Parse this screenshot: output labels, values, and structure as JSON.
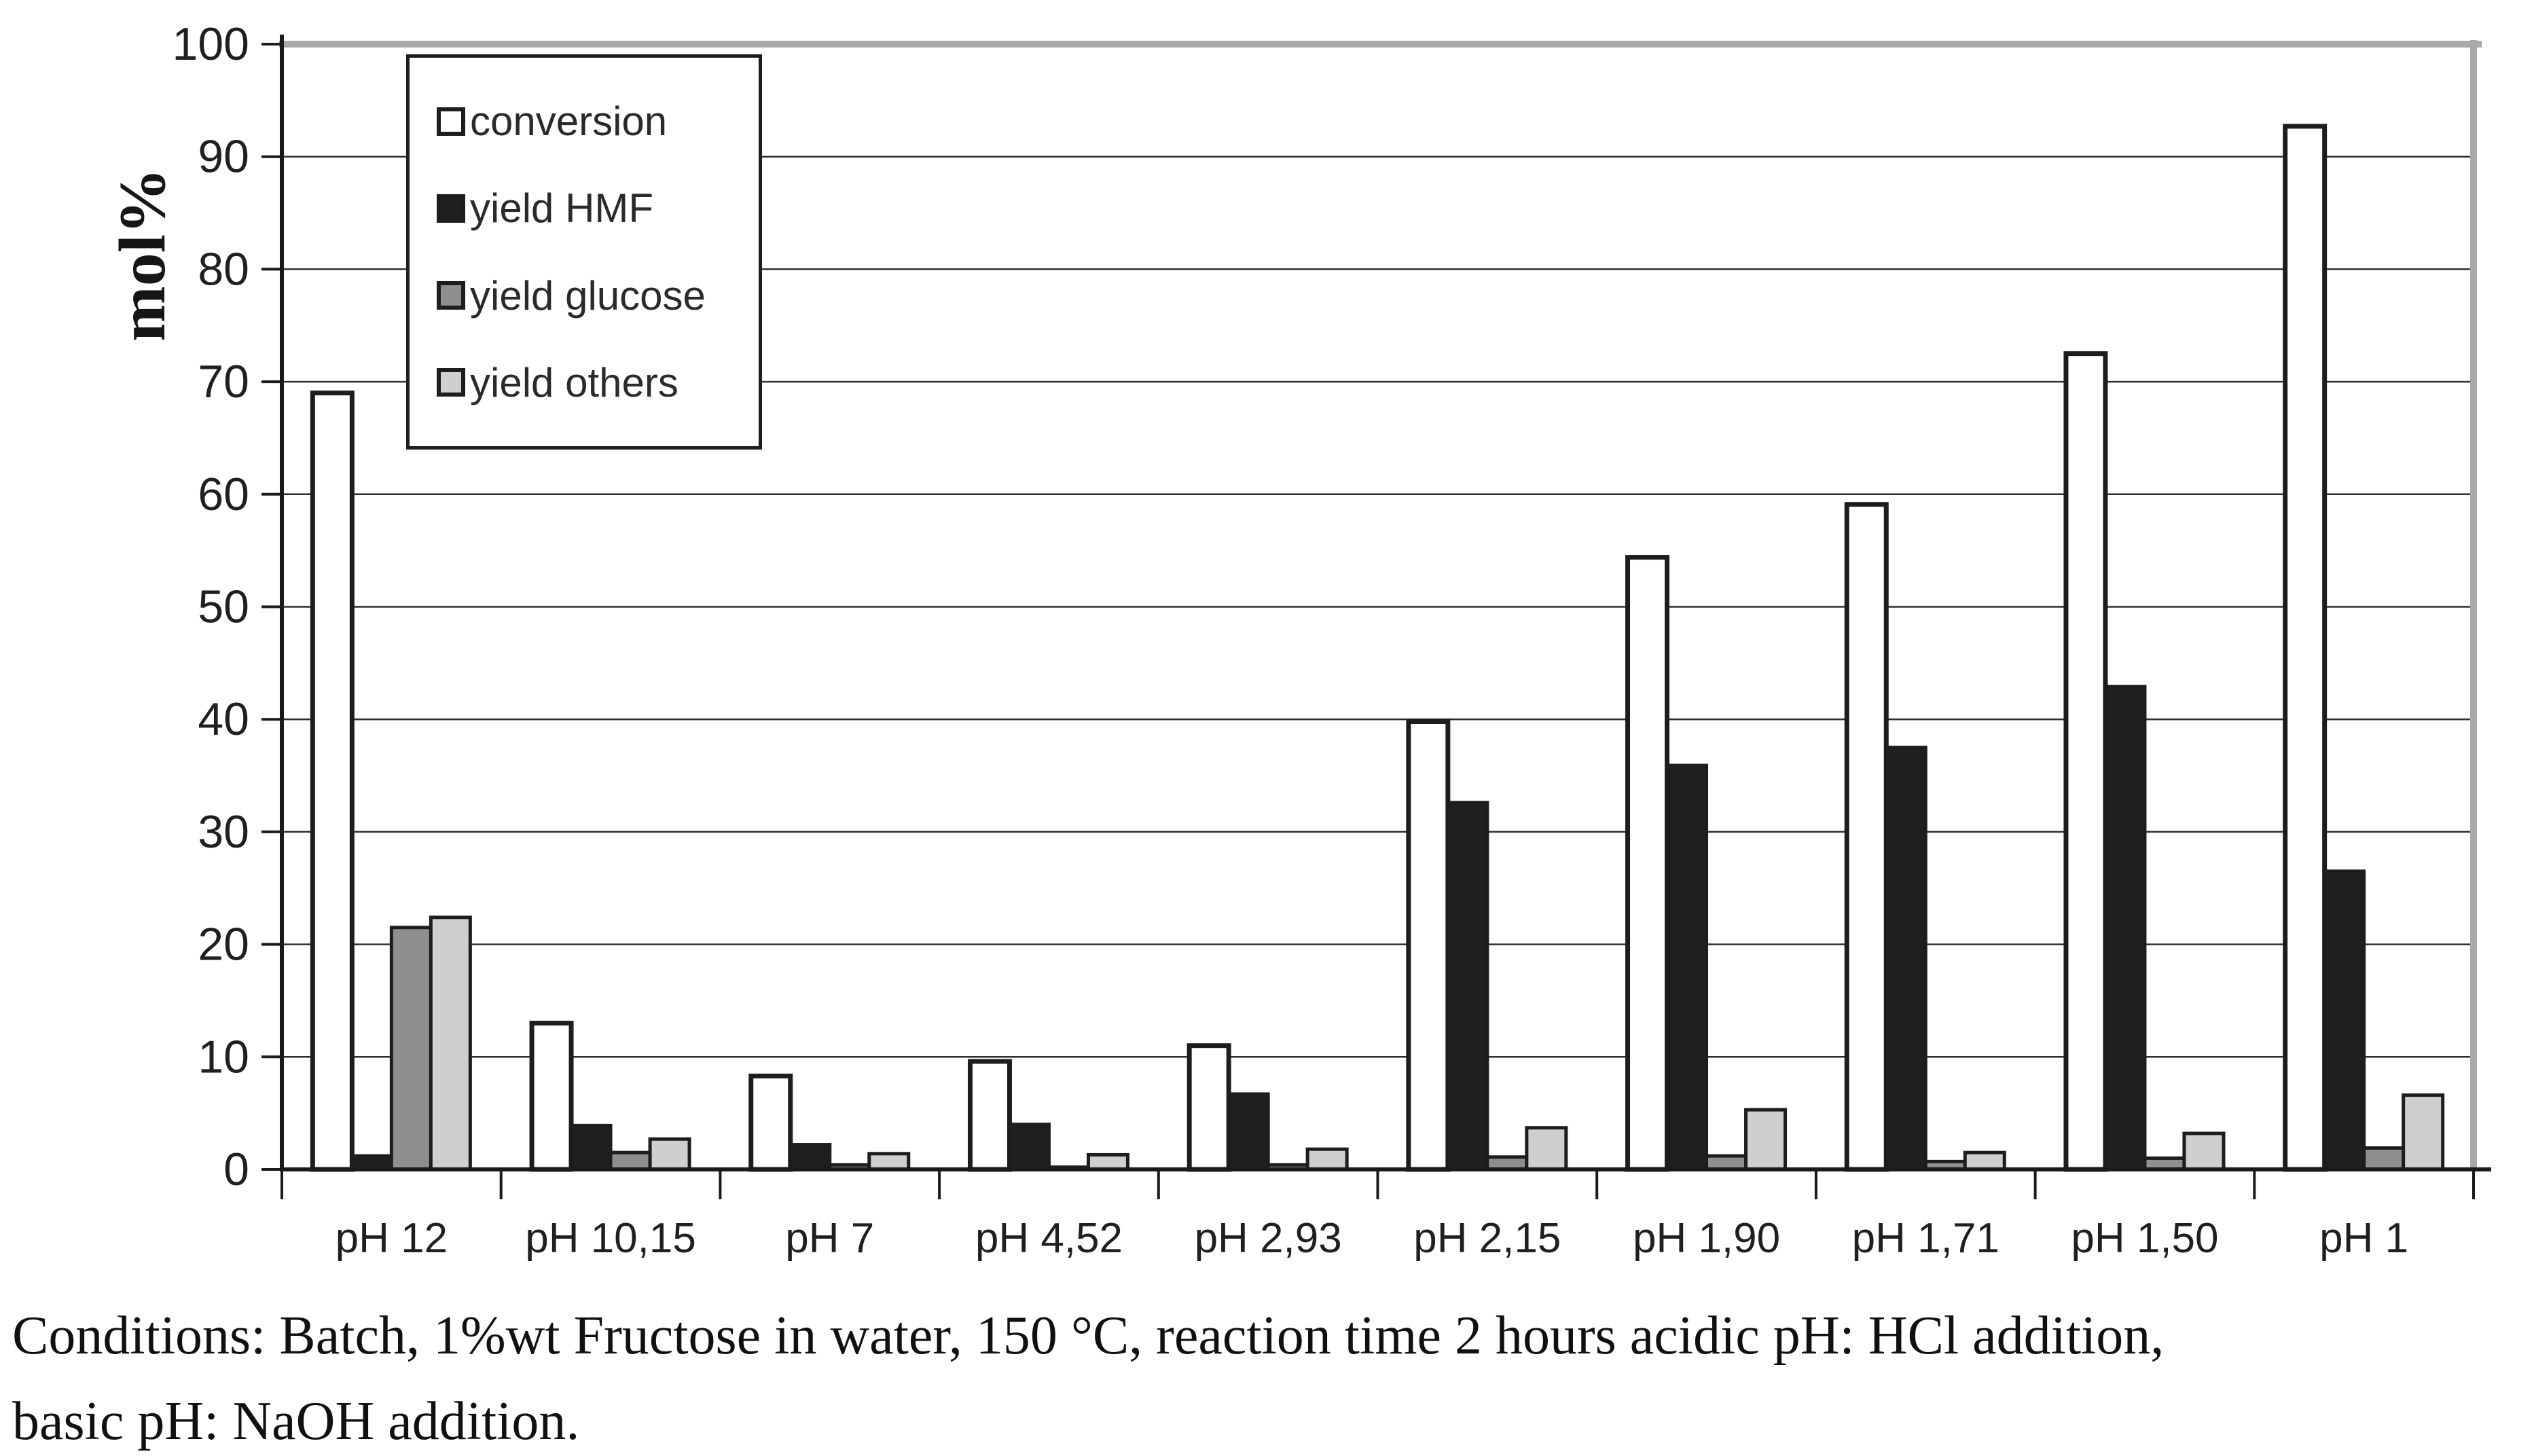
{
  "figure": {
    "ylabel": "mol%",
    "caption_line1": "Conditions: Batch, 1%wt Fructose in water, 150 °C, reaction time 2 hours acidic pH: HCl addition,",
    "caption_line2": "basic pH: NaOH addition."
  },
  "chart_data": {
    "type": "bar",
    "title": "",
    "xlabel": "",
    "ylabel": "mol%",
    "ylim": [
      0,
      100
    ],
    "ytick_step": 10,
    "yticks": [
      0,
      10,
      20,
      30,
      40,
      50,
      60,
      70,
      80,
      90,
      100
    ],
    "grid": true,
    "legend_position": "top-left-inside",
    "categories": [
      "pH 12",
      "pH 10,15",
      "pH 7",
      "pH 4,52",
      "pH 2,93",
      "pH 2,15",
      "pH 1,90",
      "pH 1,71",
      "pH 1,50",
      "pH 1"
    ],
    "series": [
      {
        "name": "conversion",
        "fill": "#ffffff",
        "values": [
          69.0,
          13.0,
          8.3,
          9.6,
          11.0,
          39.8,
          54.4,
          59.1,
          72.5,
          92.7
        ]
      },
      {
        "name": "yield HMF",
        "fill": "#1f1f1f",
        "values": [
          1.2,
          3.9,
          2.2,
          4.0,
          6.7,
          32.6,
          35.9,
          37.5,
          42.9,
          26.5
        ]
      },
      {
        "name": "yield glucose",
        "fill": "#8f8f8f",
        "values": [
          21.5,
          1.5,
          0.4,
          0.2,
          0.4,
          1.1,
          1.2,
          0.7,
          1.0,
          1.9
        ]
      },
      {
        "name": "yield others",
        "fill": "#cfcfcf",
        "values": [
          22.4,
          2.7,
          1.4,
          1.3,
          1.8,
          3.7,
          5.3,
          1.5,
          3.2,
          6.6
        ]
      }
    ],
    "bar_outline": "#1d1d1d"
  },
  "colors": {
    "background": "#ffffff",
    "grid": "#2e2e2e",
    "axis": "#1a1a1a",
    "frame_gray": "#a9a9a9",
    "text": "#1f1f1f"
  }
}
